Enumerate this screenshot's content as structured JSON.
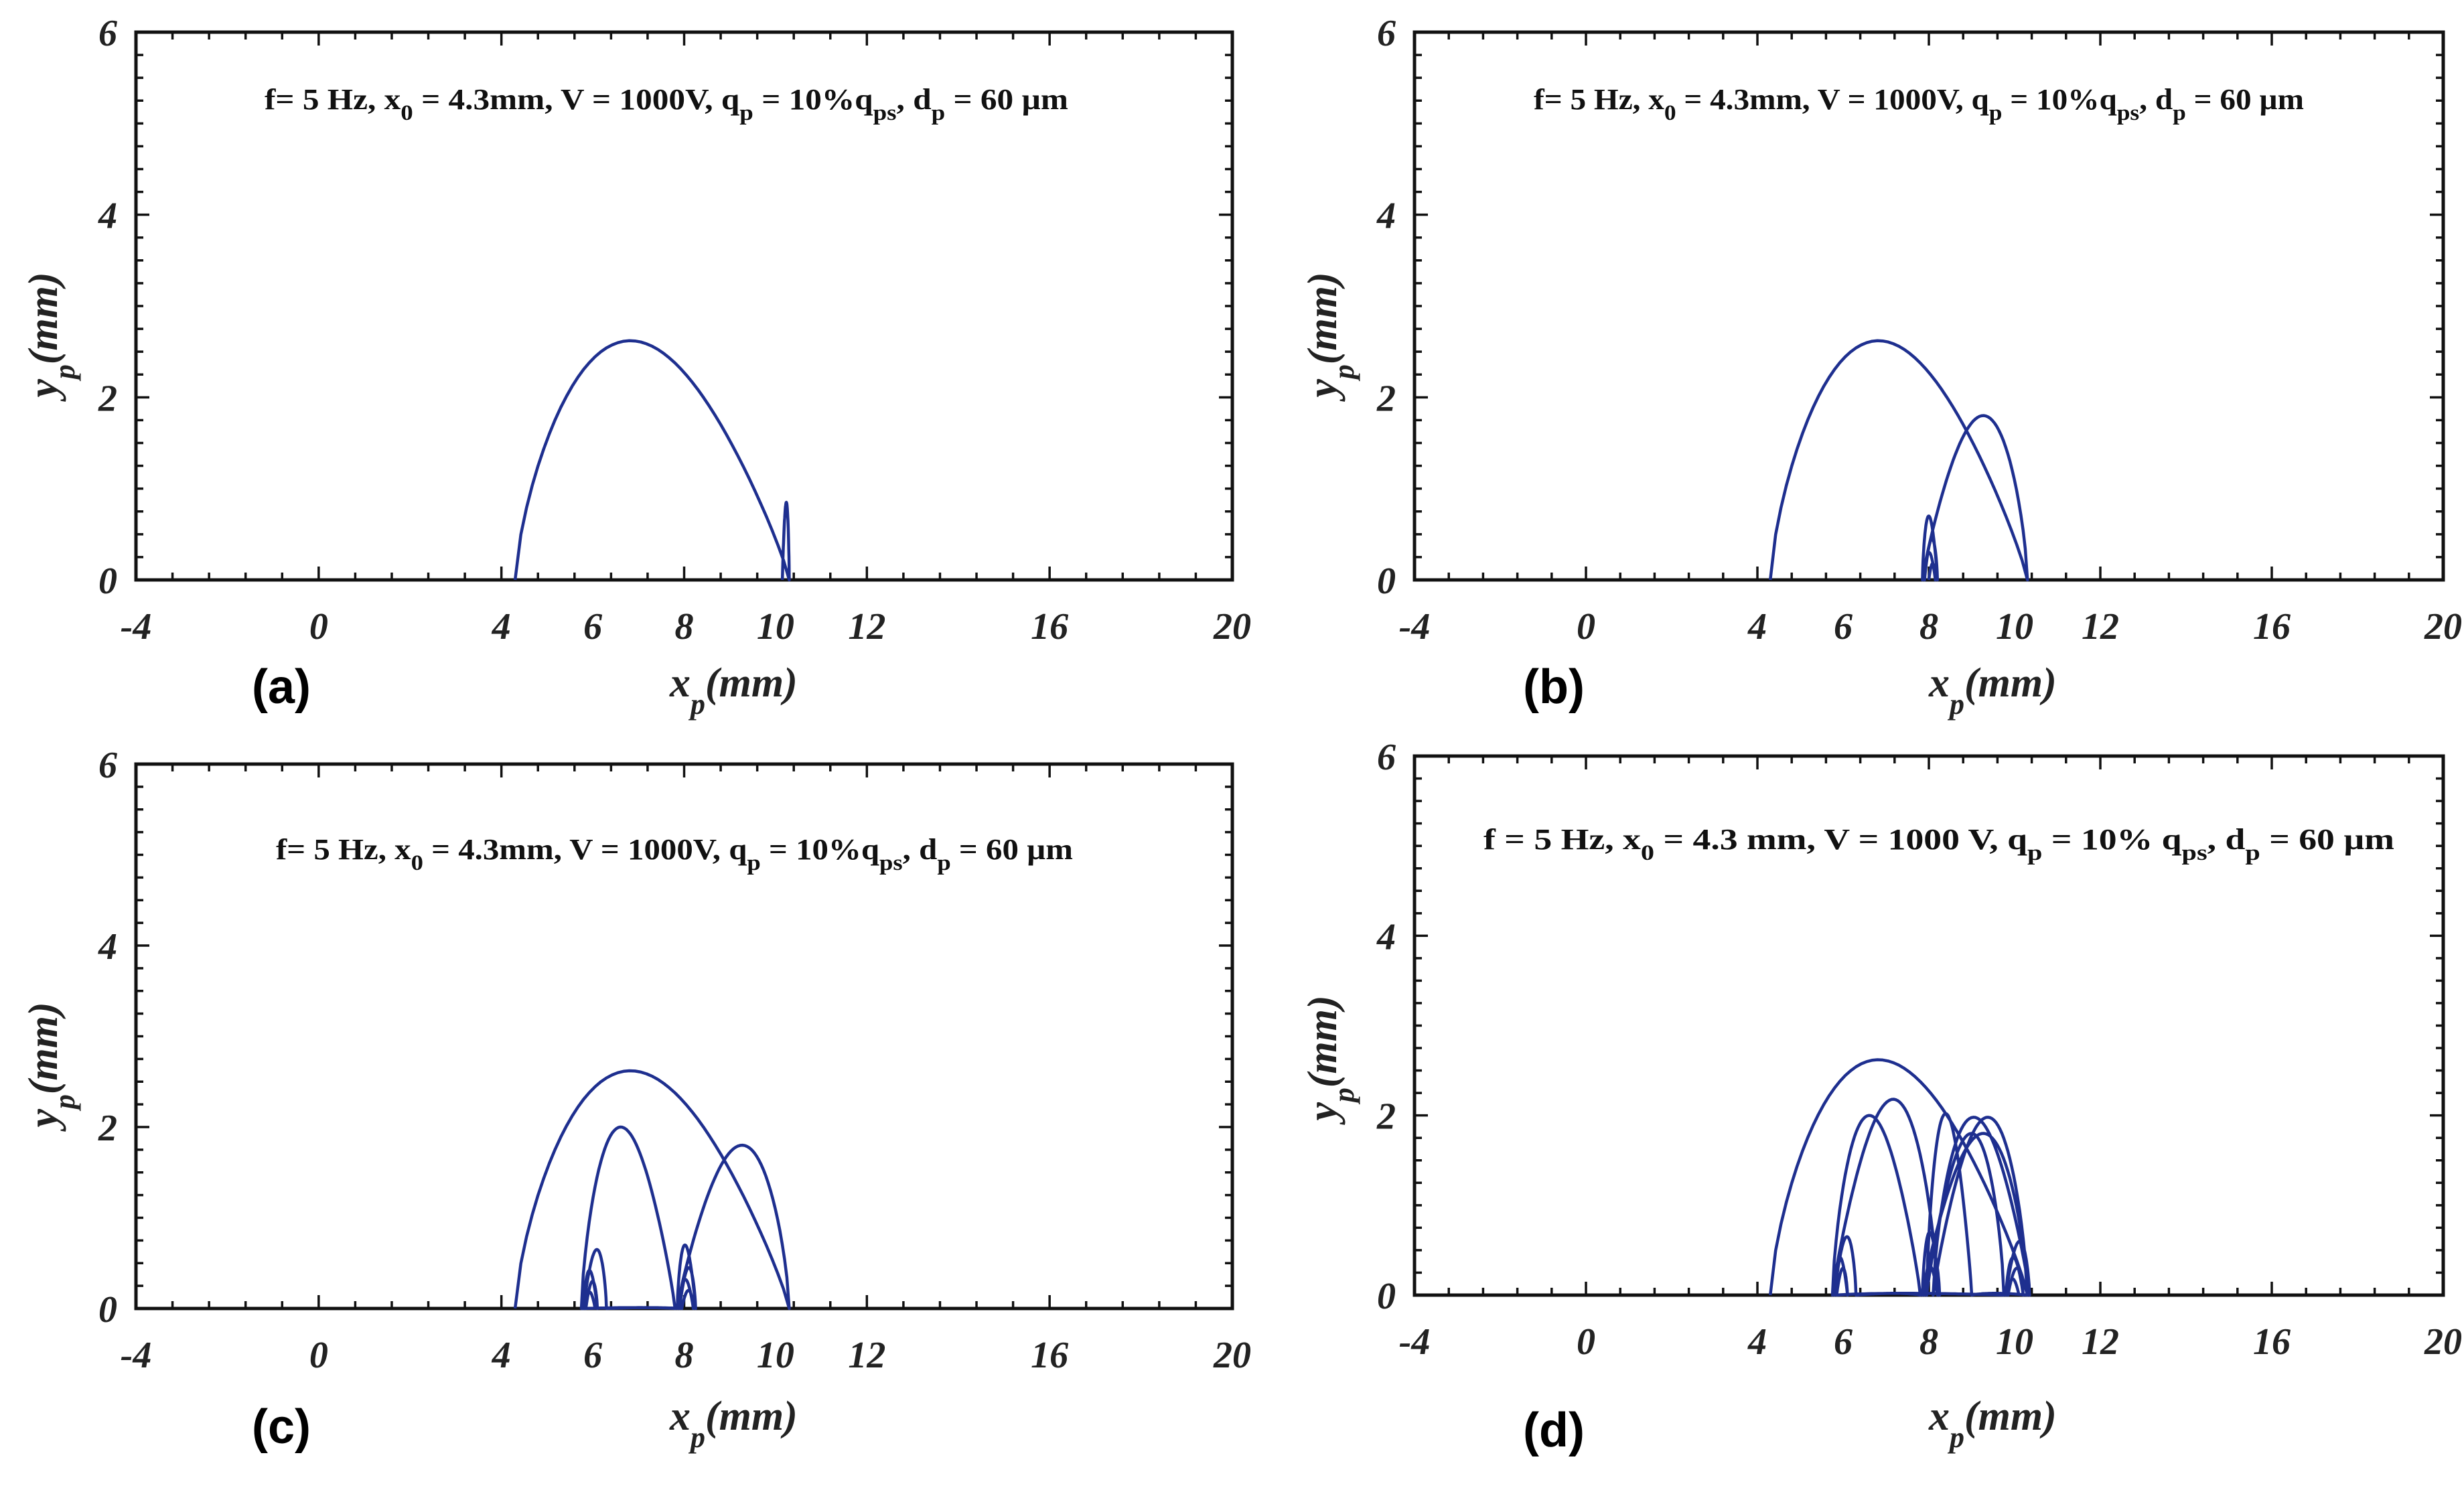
{
  "chart_data": [
    {
      "type": "line",
      "panel": "(a)",
      "annotation": {
        "f": "f= 5 Hz, x",
        "x0": " = 4.3mm, V = 1000V, q",
        "qp": " = 10%q",
        "qps": ", d",
        "dp": " = 60 µm",
        "s_x0": "0",
        "s_qp": "p",
        "s_qps": "ps",
        "s_dp": "p"
      },
      "xlabel": {
        "main": "x",
        "sub": "p",
        "unit": "(mm)"
      },
      "ylabel": {
        "main": "y",
        "sub": "p",
        "unit": "(mm)"
      },
      "xlim": [
        -4,
        20
      ],
      "ylim": [
        0,
        6
      ],
      "xticks": [
        -4,
        0,
        4,
        6,
        8,
        10,
        12,
        16,
        20
      ],
      "yticks": [
        0,
        2,
        4,
        6
      ],
      "series": [
        {
          "arches": [
            {
              "x0": 4.3,
              "x1": 10.3,
              "h": 2.62
            },
            {
              "x0": 10.3,
              "x1": 10.15,
              "h": 0.85
            }
          ]
        }
      ]
    },
    {
      "type": "line",
      "panel": "(b)",
      "annotation": {
        "f": "f= 5 Hz, x",
        "x0": " = 4.3mm, V = 1000V, q",
        "qp": " = 10%q",
        "qps": ", d",
        "dp": " = 60 µm",
        "s_x0": "0",
        "s_qp": "p",
        "s_qps": "ps",
        "s_dp": "p"
      },
      "xlabel": {
        "main": "x",
        "sub": "p",
        "unit": "(mm)"
      },
      "ylabel": {
        "main": "y",
        "sub": "p",
        "unit": "(mm)"
      },
      "xlim": [
        -4,
        20
      ],
      "ylim": [
        0,
        6
      ],
      "xticks": [
        -4,
        0,
        4,
        6,
        8,
        10,
        12,
        16,
        20
      ],
      "yticks": [
        0,
        2,
        4,
        6
      ],
      "series": [
        {
          "arches": [
            {
              "x0": 4.3,
              "x1": 10.3,
              "h": 2.62
            },
            {
              "x0": 10.3,
              "x1": 7.85,
              "h": 1.8
            },
            {
              "x0": 7.85,
              "x1": 8.2,
              "h": 0.7
            },
            {
              "x0": 8.2,
              "x1": 7.9,
              "h": 0.45
            },
            {
              "x0": 7.9,
              "x1": 8.15,
              "h": 0.3
            },
            {
              "x0": 8.15,
              "x1": 8.0,
              "h": 0.18
            }
          ]
        }
      ]
    },
    {
      "type": "line",
      "panel": "(c)",
      "annotation": {
        "f": "f= 5 Hz, x",
        "x0": " = 4.3mm, V = 1000V, q",
        "qp": " = 10%q",
        "qps": ", d",
        "dp": " = 60 µm",
        "s_x0": "0",
        "s_qp": "p",
        "s_qps": "ps",
        "s_dp": "p"
      },
      "xlabel": {
        "main": "x",
        "sub": "p",
        "unit": "(mm)"
      },
      "ylabel": {
        "main": "y",
        "sub": "p",
        "unit": "(mm)"
      },
      "xlim": [
        -4,
        20
      ],
      "ylim": [
        0,
        6
      ],
      "xticks": [
        -4,
        0,
        4,
        6,
        8,
        10,
        12,
        16,
        20
      ],
      "yticks": [
        0,
        2,
        4,
        6
      ],
      "series": [
        {
          "arches": [
            {
              "x0": 4.3,
              "x1": 10.3,
              "h": 2.62
            },
            {
              "x0": 10.3,
              "x1": 7.85,
              "h": 1.8
            },
            {
              "x0": 7.85,
              "x1": 8.25,
              "h": 0.7
            },
            {
              "x0": 8.25,
              "x1": 7.9,
              "h": 0.45
            },
            {
              "x0": 7.9,
              "x1": 8.2,
              "h": 0.32
            },
            {
              "x0": 8.2,
              "x1": 7.95,
              "h": 0.2
            },
            {
              "x0": 7.95,
              "x1": 5.75,
              "h": 0.01
            },
            {
              "x0": 5.75,
              "x1": 7.8,
              "h": 2.0
            },
            {
              "x0": 7.8,
              "x1": 6.3,
              "h": 0.01
            },
            {
              "x0": 6.3,
              "x1": 5.8,
              "h": 0.65
            },
            {
              "x0": 5.8,
              "x1": 6.1,
              "h": 0.42
            },
            {
              "x0": 6.1,
              "x1": 5.85,
              "h": 0.3
            },
            {
              "x0": 5.85,
              "x1": 6.05,
              "h": 0.18
            }
          ]
        }
      ]
    },
    {
      "type": "line",
      "panel": "(d)",
      "annotation": {
        "f": "f = 5 Hz, x",
        "x0": " = 4.3 mm, V = 1000 V, q",
        "qp": " = 10% q",
        "qps": ", d",
        "dp": " = 60 µm",
        "s_x0": "0",
        "s_qp": "p",
        "s_qps": "ps",
        "s_dp": "p"
      },
      "xlabel": {
        "main": "x",
        "sub": "p",
        "unit": "(mm)"
      },
      "ylabel": {
        "main": "y",
        "sub": "p",
        "unit": "(mm)"
      },
      "xlim": [
        -4,
        20
      ],
      "ylim": [
        0,
        6
      ],
      "xticks": [
        -4,
        0,
        4,
        6,
        8,
        10,
        12,
        16,
        20
      ],
      "yticks": [
        0,
        2,
        4,
        6
      ],
      "series": [
        {
          "arches": [
            {
              "x0": 4.3,
              "x1": 10.3,
              "h": 2.62
            },
            {
              "x0": 10.3,
              "x1": 7.85,
              "h": 1.8
            },
            {
              "x0": 7.85,
              "x1": 8.25,
              "h": 0.7
            },
            {
              "x0": 8.25,
              "x1": 7.9,
              "h": 0.45
            },
            {
              "x0": 7.9,
              "x1": 8.2,
              "h": 0.32
            },
            {
              "x0": 8.2,
              "x1": 5.75,
              "h": 2.18
            },
            {
              "x0": 5.75,
              "x1": 7.8,
              "h": 2.0
            },
            {
              "x0": 7.8,
              "x1": 6.3,
              "h": 0.02
            },
            {
              "x0": 6.3,
              "x1": 5.8,
              "h": 0.65
            },
            {
              "x0": 5.8,
              "x1": 6.1,
              "h": 0.42
            },
            {
              "x0": 6.1,
              "x1": 5.85,
              "h": 0.3
            },
            {
              "x0": 5.85,
              "x1": 9.75,
              "h": 0.02
            },
            {
              "x0": 9.75,
              "x1": 7.95,
              "h": 1.8
            },
            {
              "x0": 7.95,
              "x1": 9.0,
              "h": 2.02
            },
            {
              "x0": 9.0,
              "x1": 10.3,
              "h": 0.02
            },
            {
              "x0": 10.3,
              "x1": 8.1,
              "h": 1.98
            },
            {
              "x0": 8.1,
              "x1": 10.35,
              "h": 1.98
            },
            {
              "x0": 10.35,
              "x1": 9.8,
              "h": 0.6
            },
            {
              "x0": 9.8,
              "x1": 10.2,
              "h": 0.42
            },
            {
              "x0": 10.2,
              "x1": 9.85,
              "h": 0.3
            },
            {
              "x0": 9.85,
              "x1": 10.1,
              "h": 0.18
            }
          ]
        }
      ]
    }
  ]
}
